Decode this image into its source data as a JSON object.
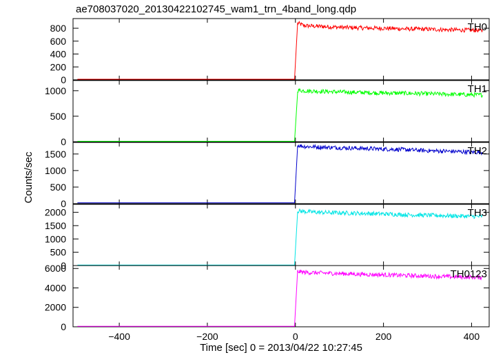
{
  "chart_data": {
    "type": "line",
    "title": "ae708037020_20130422102745_wam1_trn_4band_long.qdp",
    "xlabel": "Time [sec] 0 = 2013/04/22 10:27:45",
    "ylabel": "Counts/sec",
    "xlim": [
      -505,
      440
    ],
    "x_ticks": [
      -400,
      -200,
      0,
      200,
      400
    ],
    "x_tick_labels": [
      "−400",
      "−200",
      "0",
      "200",
      "400"
    ],
    "trigger_time": -2,
    "grid": false,
    "panels": [
      {
        "name": "TH0",
        "color": "#ff0000",
        "ylim": [
          0,
          950
        ],
        "y_ticks": [
          0,
          200,
          400,
          600,
          800
        ],
        "y_tick_labels": [
          "0",
          "200",
          "400",
          "600",
          "800"
        ],
        "pre_level": 10,
        "series": {
          "x": [
            -2,
            5,
            20,
            50,
            100,
            150,
            200,
            250,
            300,
            350,
            400,
            425
          ],
          "y": [
            10,
            880,
            840,
            830,
            815,
            805,
            800,
            790,
            785,
            775,
            770,
            765
          ]
        }
      },
      {
        "name": "TH1",
        "color": "#00ff00",
        "ylim": [
          0,
          1200
        ],
        "y_ticks": [
          0,
          500,
          1000
        ],
        "y_tick_labels": [
          "0",
          "500",
          "1000"
        ],
        "pre_level": 8,
        "series": {
          "x": [
            -2,
            5,
            20,
            50,
            100,
            150,
            200,
            250,
            300,
            350,
            400,
            425
          ],
          "y": [
            8,
            1010,
            1000,
            990,
            975,
            965,
            955,
            950,
            940,
            930,
            920,
            915
          ]
        }
      },
      {
        "name": "TH2",
        "color": "#0000cc",
        "ylim": [
          0,
          1850
        ],
        "y_ticks": [
          0,
          500,
          1000,
          1500
        ],
        "y_tick_labels": [
          "0",
          "500",
          "1000",
          "1500"
        ],
        "pre_level": 25,
        "series": {
          "x": [
            -2,
            5,
            20,
            50,
            100,
            150,
            200,
            250,
            300,
            350,
            400,
            425
          ],
          "y": [
            25,
            1760,
            1730,
            1710,
            1690,
            1670,
            1650,
            1630,
            1600,
            1580,
            1560,
            1550
          ]
        }
      },
      {
        "name": "TH3",
        "color": "#00e5e5",
        "ylim": [
          0,
          2300
        ],
        "y_ticks": [
          0,
          500,
          1000,
          1500,
          2000
        ],
        "y_tick_labels": [
          "0",
          "500",
          "1000",
          "1500",
          "2000"
        ],
        "pre_level": 20,
        "series": {
          "x": [
            -2,
            5,
            20,
            50,
            100,
            150,
            200,
            250,
            300,
            350,
            400,
            425
          ],
          "y": [
            20,
            2050,
            2030,
            2000,
            1980,
            1960,
            1940,
            1910,
            1890,
            1870,
            1850,
            1840
          ]
        }
      },
      {
        "name": "TH0123",
        "color": "#ff00ff",
        "ylim": [
          0,
          6300
        ],
        "y_ticks": [
          0,
          2000,
          4000,
          6000
        ],
        "y_tick_labels": [
          "0",
          "2000",
          "4000",
          "6000"
        ],
        "pre_level": 60,
        "series": {
          "x": [
            -2,
            5,
            20,
            50,
            100,
            150,
            200,
            250,
            300,
            350,
            400,
            425
          ],
          "y": [
            60,
            5700,
            5600,
            5550,
            5480,
            5400,
            5350,
            5280,
            5220,
            5150,
            5100,
            5070
          ]
        }
      }
    ]
  }
}
